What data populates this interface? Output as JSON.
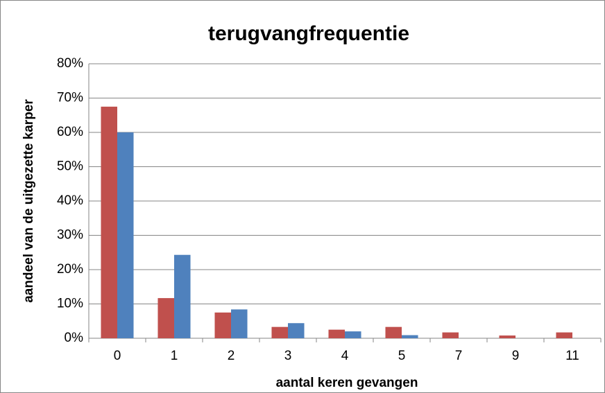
{
  "chart_data": {
    "type": "bar",
    "title": "terugvangfrequentie",
    "x_label": "aantal keren gevangen",
    "y_label": "aandeel van de uitgezette karper",
    "categories": [
      "0",
      "1",
      "2",
      "3",
      "4",
      "5",
      "7",
      "9",
      "11"
    ],
    "series": [
      {
        "color": "#c0504d",
        "values": [
          67.5,
          11.7,
          7.5,
          3.3,
          2.5,
          3.3,
          1.7,
          0.8,
          1.7
        ]
      },
      {
        "color": "#4f81bd",
        "values": [
          60,
          24.3,
          8.4,
          4.4,
          2.0,
          0.9,
          0,
          0,
          0
        ]
      }
    ],
    "ylim": [
      0,
      80
    ],
    "yticks": [
      {
        "value": 0,
        "label": "0%"
      },
      {
        "value": 10,
        "label": "10%"
      },
      {
        "value": 20,
        "label": "20%"
      },
      {
        "value": 30,
        "label": "30%"
      },
      {
        "value": 40,
        "label": "40%"
      },
      {
        "value": 50,
        "label": "50%"
      },
      {
        "value": 60,
        "label": "60%"
      },
      {
        "value": 70,
        "label": "70%"
      },
      {
        "value": 80,
        "label": "80%"
      }
    ],
    "grid": true
  }
}
